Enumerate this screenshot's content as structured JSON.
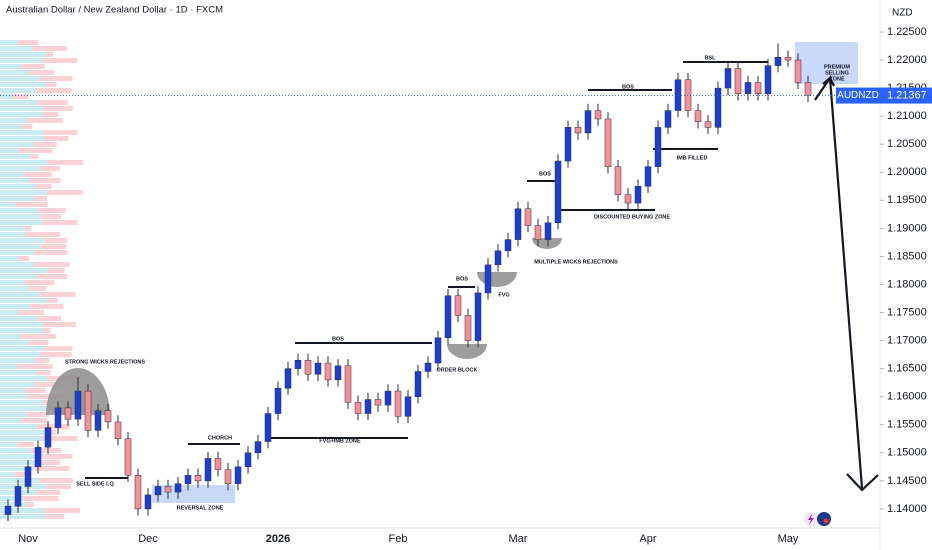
{
  "chart_data": {
    "type": "candlestick",
    "title": "Australian Dollar / New Zealand Dollar · 1D · FXCM",
    "currency": "NZD",
    "symbol": "AUDNZD",
    "categories": [
      null,
      null,
      "Nov",
      null,
      null,
      null,
      null,
      null,
      null,
      null,
      null,
      null,
      null,
      null,
      "Dec",
      null,
      null,
      null,
      null,
      null,
      null,
      null,
      null,
      null,
      null,
      null,
      null,
      "2026",
      null,
      null,
      null,
      null,
      null,
      null,
      null,
      null,
      null,
      null,
      null,
      "Feb",
      null,
      null,
      null,
      null,
      null,
      null,
      null,
      null,
      null,
      null,
      null,
      "Mar",
      null,
      null,
      null,
      null,
      null,
      null,
      null,
      null,
      null,
      null,
      null,
      null,
      "Apr",
      null,
      null,
      null,
      null,
      null,
      null,
      null,
      null,
      null,
      null,
      null,
      null,
      null,
      "May",
      null,
      null
    ],
    "open": [
      1.139,
      1.1405,
      1.144,
      1.1475,
      1.151,
      1.1545,
      1.158,
      1.156,
      1.161,
      1.154,
      1.1575,
      1.1555,
      1.1525,
      1.146,
      1.14,
      1.1425,
      1.144,
      1.143,
      1.1445,
      1.146,
      1.145,
      1.149,
      1.147,
      1.1445,
      1.1475,
      1.15,
      1.152,
      1.157,
      1.1615,
      1.165,
      1.1665,
      1.164,
      1.166,
      1.163,
      1.1655,
      1.159,
      1.157,
      1.1595,
      1.1585,
      1.161,
      1.1565,
      1.16,
      1.1645,
      1.166,
      1.1705,
      1.178,
      1.1745,
      1.17,
      1.1785,
      1.1835,
      1.186,
      1.188,
      1.1935,
      1.1905,
      1.188,
      1.191,
      1.202,
      1.208,
      1.207,
      1.211,
      1.2095,
      1.201,
      1.196,
      1.1945,
      1.1975,
      1.201,
      1.208,
      1.211,
      1.2165,
      1.211,
      1.209,
      1.208,
      1.215,
      1.2185,
      1.214,
      1.216,
      1.214,
      1.219,
      1.2205,
      1.22,
      1.216
    ],
    "high": [
      1.1417,
      1.1452,
      1.1487,
      1.1522,
      1.1557,
      1.1592,
      1.1592,
      1.1635,
      1.1622,
      1.1587,
      1.1587,
      1.1567,
      1.1537,
      1.1472,
      1.1437,
      1.1452,
      1.1452,
      1.1457,
      1.1472,
      1.1472,
      1.1502,
      1.1502,
      1.1482,
      1.1487,
      1.1512,
      1.1532,
      1.1582,
      1.1627,
      1.1662,
      1.1677,
      1.1677,
      1.1672,
      1.1672,
      1.1667,
      1.1667,
      1.1602,
      1.1607,
      1.1607,
      1.1622,
      1.1622,
      1.1612,
      1.1657,
      1.1672,
      1.1717,
      1.1792,
      1.1792,
      1.1757,
      1.1797,
      1.1847,
      1.1872,
      1.1892,
      1.1947,
      1.1947,
      1.1917,
      1.1922,
      1.2032,
      1.2092,
      1.2092,
      1.2122,
      1.2122,
      1.2107,
      1.2022,
      1.1972,
      1.1987,
      1.2022,
      1.2092,
      1.2122,
      1.2177,
      1.2177,
      1.2122,
      1.2102,
      1.2162,
      1.2197,
      1.2197,
      1.2172,
      1.2172,
      1.2202,
      1.223,
      1.2217,
      1.2212,
      1.2172
    ],
    "low": [
      1.1378,
      1.1393,
      1.1428,
      1.1463,
      1.1498,
      1.1533,
      1.1548,
      1.1548,
      1.1528,
      1.1528,
      1.1543,
      1.1513,
      1.1448,
      1.1388,
      1.1388,
      1.1413,
      1.1418,
      1.1418,
      1.1433,
      1.1438,
      1.1438,
      1.1458,
      1.1433,
      1.1433,
      1.1463,
      1.1488,
      1.1508,
      1.1558,
      1.1603,
      1.1638,
      1.1628,
      1.1628,
      1.1618,
      1.1618,
      1.1578,
      1.1558,
      1.1558,
      1.1573,
      1.1573,
      1.1553,
      1.1553,
      1.1588,
      1.1633,
      1.1648,
      1.1693,
      1.1733,
      1.1688,
      1.1688,
      1.1773,
      1.1823,
      1.1848,
      1.1868,
      1.1893,
      1.1868,
      1.1868,
      1.1898,
      1.2008,
      1.2058,
      1.2058,
      1.2083,
      1.1998,
      1.1948,
      1.1933,
      1.1933,
      1.1963,
      1.1998,
      1.2068,
      1.2098,
      1.2098,
      1.2078,
      1.2068,
      1.2068,
      1.2138,
      1.2128,
      1.2128,
      1.2128,
      1.2128,
      1.2178,
      1.2188,
      1.2148,
      1.2125
    ],
    "close": [
      1.1405,
      1.144,
      1.1475,
      1.151,
      1.1545,
      1.158,
      1.156,
      1.161,
      1.154,
      1.1575,
      1.1555,
      1.1525,
      1.146,
      1.14,
      1.1425,
      1.144,
      1.143,
      1.1445,
      1.146,
      1.145,
      1.149,
      1.147,
      1.1445,
      1.1475,
      1.15,
      1.152,
      1.157,
      1.1615,
      1.165,
      1.1665,
      1.164,
      1.166,
      1.163,
      1.1655,
      1.159,
      1.157,
      1.1595,
      1.1585,
      1.161,
      1.1565,
      1.16,
      1.1645,
      1.166,
      1.1705,
      1.178,
      1.1745,
      1.17,
      1.1785,
      1.1835,
      1.186,
      1.188,
      1.1935,
      1.1905,
      1.188,
      1.191,
      1.202,
      1.208,
      1.207,
      1.211,
      1.2095,
      1.201,
      1.196,
      1.1945,
      1.1975,
      1.201,
      1.208,
      1.211,
      1.2165,
      1.211,
      1.209,
      1.208,
      1.215,
      1.2185,
      1.214,
      1.216,
      1.214,
      1.219,
      1.2205,
      1.22,
      1.216,
      1.2137
    ],
    "up_color": "#1c3fcf",
    "down_color": "#f3909b",
    "wick_color": "#2a2e39",
    "grid": false,
    "ylim": [
      1.1366,
      1.2307
    ],
    "yticks": [
      {
        "value": 1.14,
        "label": "1.14000"
      },
      {
        "value": 1.145,
        "label": "1.14500"
      },
      {
        "value": 1.15,
        "label": "1.15000"
      },
      {
        "value": 1.155,
        "label": "1.15500"
      },
      {
        "value": 1.16,
        "label": "1.16000"
      },
      {
        "value": 1.165,
        "label": "1.16500"
      },
      {
        "value": 1.17,
        "label": "1.17000"
      },
      {
        "value": 1.175,
        "label": "1.17500"
      },
      {
        "value": 1.18,
        "label": "1.18000"
      },
      {
        "value": 1.185,
        "label": "1.18500"
      },
      {
        "value": 1.19,
        "label": "1.19000"
      },
      {
        "value": 1.195,
        "label": "1.19500"
      },
      {
        "value": 1.2,
        "label": "1.20000"
      },
      {
        "value": 1.205,
        "label": "1.20500"
      },
      {
        "value": 1.21,
        "label": "1.21000"
      },
      {
        "value": 1.215,
        "label": "1.21500"
      },
      {
        "value": 1.22,
        "label": "1.22000"
      },
      {
        "value": 1.225,
        "label": "1.22500"
      }
    ],
    "last_price": {
      "value": 1.21367,
      "label": "1.21367"
    },
    "annotations": [
      "STRONG WICKS REJECTIONS",
      "SELL SIDE LQ",
      "REVERSAL ZONE",
      "CHORCH",
      "BOS",
      "FVG+IMB ZONE",
      "ORDER BLOCK",
      "BOS",
      "FVG",
      "BOS",
      "MULTIPLE WICKS REJECTIONS",
      "DISCOUNTED BUYING ZONE",
      "BOS",
      "IMB FILLED",
      "BSL",
      "PREMIUM",
      "SELLING",
      "ZONE"
    ]
  }
}
